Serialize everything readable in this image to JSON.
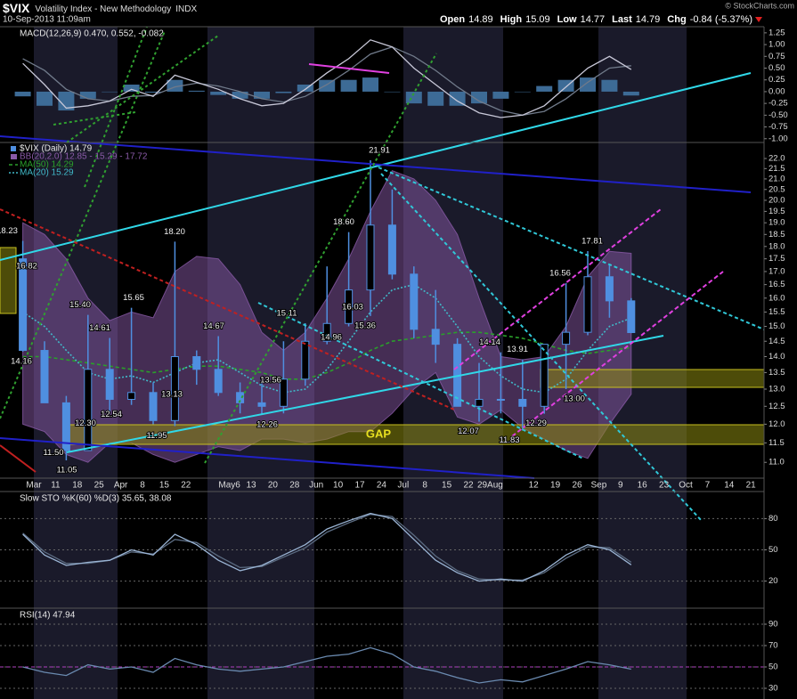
{
  "header": {
    "symbol": "$VIX",
    "name": "Volatility Index - New Methodology",
    "exchange": "INDX",
    "timestamp": "10-Sep-2013 11:09am",
    "credit": "© StockCharts.com",
    "quote": [
      {
        "label": "Open",
        "value": "14.89"
      },
      {
        "label": "High",
        "value": "15.09"
      },
      {
        "label": "Low",
        "value": "14.77"
      },
      {
        "label": "Last",
        "value": "14.79"
      },
      {
        "label": "Chg",
        "value": "-0.84 (-5.37%)"
      }
    ]
  },
  "chart_data": [
    {
      "type": "macd",
      "title": "MACD(12,26,9) 0.470, 0.552, -0.082",
      "ylim": [
        -1.08,
        1.38
      ],
      "yticks": [
        1.25,
        {
          "value": 1,
          "label": "1.00"
        },
        0.75,
        {
          "value": 0.5,
          "label": "0.50"
        },
        0.25,
        {
          "value": 0,
          "label": "0.00"
        },
        -0.25,
        {
          "value": -0.5,
          "label": "-0.50"
        },
        -0.75,
        {
          "value": -1,
          "label": "-1.00"
        }
      ],
      "grid": false,
      "series": [
        {
          "type": "bar",
          "color": "#3d6b96",
          "values": [
            -0.1,
            -0.3,
            -0.4,
            -0.15,
            0.0,
            0.15,
            -0.02,
            0.25,
            0.02,
            -0.07,
            -0.15,
            -0.15,
            -0.03,
            0.15,
            0.25,
            0.25,
            0.3,
            0.0,
            -0.25,
            -0.3,
            -0.3,
            -0.25,
            -0.15,
            0.0,
            0.12,
            0.25,
            0.3,
            0.25,
            -0.082,
            null,
            null,
            null,
            null,
            null,
            null
          ]
        },
        {
          "type": "line",
          "color": "#707a8a",
          "values": [
            0.7,
            0.45,
            0.05,
            -0.15,
            -0.2,
            -0.1,
            -0.08,
            0.1,
            0.18,
            0.12,
            0.0,
            -0.15,
            -0.22,
            -0.1,
            0.15,
            0.45,
            0.8,
            0.95,
            0.75,
            0.45,
            0.1,
            -0.2,
            -0.4,
            -0.5,
            -0.42,
            -0.15,
            0.2,
            0.5,
            0.552,
            null,
            null,
            null,
            null,
            null,
            null
          ]
        },
        {
          "type": "line",
          "color": "#c8c8d8",
          "values": [
            0.6,
            0.15,
            -0.35,
            -0.3,
            -0.2,
            0.05,
            -0.1,
            0.35,
            0.2,
            0.05,
            -0.15,
            -0.3,
            -0.25,
            0.05,
            0.4,
            0.7,
            1.1,
            0.95,
            0.5,
            0.15,
            -0.2,
            -0.45,
            -0.55,
            -0.5,
            -0.3,
            0.1,
            0.5,
            0.75,
            0.47,
            null,
            null,
            null,
            null,
            null,
            null
          ]
        }
      ]
    },
    {
      "type": "candlestick",
      "title": "$VIX (Daily) 14.79",
      "log_scale": true,
      "color": "#4f8fe0",
      "categories": [
        null,
        "Mar",
        "11",
        "18",
        "25",
        "Apr",
        "8",
        "15",
        "22",
        null,
        "May6",
        "13",
        "20",
        "28",
        "Jun",
        "10",
        "17",
        "24",
        "Jul",
        "8",
        "15",
        "22",
        "29Aug",
        null,
        "12",
        "19",
        "26",
        "Sep",
        "9",
        "16",
        "23",
        "Oct",
        "7",
        "14",
        "21"
      ],
      "open": [
        17.5,
        14.2,
        12.6,
        11.3,
        13.6,
        12.7,
        12.9,
        12.1,
        14.0,
        13.6,
        12.9,
        12.6,
        12.5,
        13.3,
        14.5,
        15.1,
        16.3,
        18.9,
        16.9,
        14.9,
        14.4,
        12.5,
        12.7,
        12.7,
        12.5,
        14.4,
        14.8,
        16.8,
        15.9,
        null,
        null,
        null,
        null,
        null,
        null
      ],
      "high": [
        18.23,
        14.5,
        12.8,
        15.4,
        14.61,
        15.65,
        13.2,
        18.2,
        14.2,
        14.67,
        13.2,
        13.2,
        14.5,
        15.11,
        17.2,
        18.6,
        21.91,
        20.5,
        17.2,
        16.3,
        14.6,
        13.8,
        14.14,
        13.91,
        14.4,
        16.56,
        17.81,
        17.3,
        16.0,
        null,
        null,
        null,
        null,
        null,
        null
      ],
      "low": [
        14.16,
        12.6,
        11.05,
        11.3,
        12.3,
        12.54,
        12.0,
        11.95,
        13.13,
        12.8,
        12.3,
        12.26,
        12.3,
        13.1,
        14.4,
        15.0,
        15.36,
        16.7,
        14.6,
        13.8,
        12.5,
        12.07,
        12.3,
        11.83,
        12.29,
        13.0,
        14.7,
        15.3,
        14.77,
        null,
        null,
        null,
        null,
        null,
        null
      ],
      "close": [
        14.2,
        12.6,
        11.3,
        13.6,
        12.7,
        12.9,
        12.1,
        14.0,
        13.6,
        12.9,
        12.6,
        12.5,
        13.3,
        14.5,
        15.1,
        16.3,
        18.9,
        16.9,
        14.9,
        14.4,
        12.5,
        12.7,
        12.7,
        12.5,
        14.4,
        14.8,
        16.8,
        15.9,
        14.79,
        null,
        null,
        null,
        null,
        null,
        null
      ],
      "ylim": [
        10.61,
        22.82
      ],
      "yticks": [
        {
          "value": 11,
          "label": "11.0"
        },
        11.5,
        {
          "value": 12,
          "label": "12.0"
        },
        12.5,
        {
          "value": 13,
          "label": "13.0"
        },
        13.5,
        {
          "value": 14,
          "label": "14.0"
        },
        14.5,
        {
          "value": 15,
          "label": "15.0"
        },
        15.5,
        {
          "value": 16,
          "label": "16.0"
        },
        16.5,
        {
          "value": 17,
          "label": "17.0"
        },
        17.5,
        {
          "value": 18,
          "label": "18.0"
        },
        18.5,
        {
          "value": 19,
          "label": "19.0"
        },
        19.5,
        {
          "value": 20,
          "label": "20.0"
        },
        20.5,
        {
          "value": 21,
          "label": "21.0"
        },
        21.5,
        {
          "value": 22,
          "label": "22.0"
        }
      ],
      "grid": false,
      "series": [
        {
          "type": "band",
          "name": "BB(20,2.0) 12.85 - 15.29 - 17.72",
          "color": "#8a5aa8",
          "upper": [
            19.0,
            18.5,
            17.5,
            16.0,
            15.2,
            15.5,
            15.3,
            17.0,
            17.6,
            17.5,
            16.5,
            14.8,
            14.2,
            14.8,
            16.0,
            17.5,
            19.5,
            21.4,
            21.0,
            20.0,
            18.5,
            16.0,
            14.0,
            13.9,
            14.0,
            15.0,
            16.8,
            17.8,
            17.72,
            null,
            null,
            null,
            null,
            null,
            null
          ],
          "lower": [
            12.0,
            11.8,
            11.2,
            11.0,
            11.5,
            11.5,
            11.2,
            11.0,
            11.2,
            11.4,
            11.3,
            11.6,
            11.6,
            11.5,
            11.6,
            11.8,
            11.8,
            12.3,
            13.0,
            13.5,
            12.2,
            12.0,
            12.4,
            11.9,
            11.6,
            11.3,
            11.1,
            12.0,
            12.85,
            null,
            null,
            null,
            null,
            null,
            null
          ]
        },
        {
          "type": "line",
          "name": "MA(50) 14.29",
          "color": "#2aa02a",
          "line_style": "dashed",
          "values": [
            14.0,
            14.0,
            13.9,
            13.8,
            13.7,
            13.6,
            13.5,
            13.6,
            13.7,
            13.7,
            13.6,
            13.5,
            13.3,
            13.3,
            13.5,
            13.8,
            14.2,
            14.5,
            14.6,
            14.7,
            14.8,
            14.8,
            14.7,
            14.6,
            14.4,
            14.2,
            14.1,
            14.2,
            14.29,
            null,
            null,
            null,
            null,
            null,
            null
          ]
        },
        {
          "type": "line",
          "name": "MA(20) 15.29",
          "color": "#40b8c8",
          "line_style": "dotted",
          "values": [
            15.5,
            15.0,
            14.2,
            13.5,
            13.3,
            13.4,
            13.2,
            13.5,
            13.8,
            13.9,
            13.5,
            13.1,
            12.9,
            13.0,
            13.6,
            14.5,
            15.5,
            16.3,
            16.5,
            16.0,
            15.0,
            14.0,
            13.4,
            13.0,
            12.9,
            13.3,
            14.2,
            15.0,
            15.29,
            null,
            null,
            null,
            null,
            null,
            null
          ]
        }
      ],
      "annotations": [
        {
          "value": 18.23,
          "label": "18.23"
        },
        {
          "value": 16.82,
          "label": "16.82"
        },
        {
          "value": 14.16,
          "label": "14.16"
        },
        {
          "value": 11.5,
          "label": "11.50"
        },
        {
          "value": 11.05,
          "label": "11.05"
        },
        {
          "value": 15.4,
          "label": "15.40"
        },
        {
          "value": 14.61,
          "label": "14.61"
        },
        {
          "value": 12.3,
          "label": "12.30"
        },
        {
          "value": 12.54,
          "label": "12.54"
        },
        {
          "value": 15.65,
          "label": "15.65"
        },
        {
          "value": 18.2,
          "label": "18.20"
        },
        {
          "value": 13.13,
          "label": "13.13"
        },
        {
          "value": 14.67,
          "label": "14.67"
        },
        {
          "value": 11.95,
          "label": "11.95"
        },
        {
          "value": 12.26,
          "label": "12.26"
        },
        {
          "value": 13.56,
          "label": "13.56"
        },
        {
          "value": 15.11,
          "label": "15.11"
        },
        {
          "value": 14.96,
          "label": "14.96"
        },
        {
          "value": 18.6,
          "label": "18.60"
        },
        {
          "value": 16.03,
          "label": "16.03"
        },
        {
          "value": 15.36,
          "label": "15.36"
        },
        {
          "value": 21.91,
          "label": "21.91"
        },
        {
          "value": 12.07,
          "label": "12.07"
        },
        {
          "value": 14.14,
          "label": "14.14"
        },
        {
          "value": 13.91,
          "label": "13.91"
        },
        {
          "value": 11.83,
          "label": "11.83"
        },
        {
          "value": 12.29,
          "label": "12.29"
        },
        {
          "value": 16.56,
          "label": "16.56"
        },
        {
          "value": 17.81,
          "label": "17.81"
        },
        {
          "value": 13.0,
          "label": "13.00"
        }
      ],
      "gap_label": "GAP"
    },
    {
      "type": "line",
      "title": "Slow STO %K(60) %D(3) 35.65, 38.08",
      "ylim": [
        -6,
        106
      ],
      "yticks": [
        20,
        50,
        80
      ],
      "grid": true,
      "series": [
        {
          "color": "#5a6a80",
          "values": [
            66,
            48,
            37,
            37,
            40,
            48,
            46,
            60,
            57,
            44,
            33,
            34,
            43,
            52,
            67,
            76,
            84,
            82,
            64,
            44,
            30,
            22,
            21,
            21,
            28,
            42,
            53,
            52,
            38.08,
            null,
            null,
            null,
            null,
            null,
            null
          ]
        },
        {
          "color": "#9ab4d4",
          "values": [
            65,
            45,
            35,
            38,
            40,
            50,
            45,
            65,
            55,
            40,
            30,
            35,
            45,
            55,
            70,
            78,
            85,
            80,
            60,
            40,
            28,
            20,
            22,
            20,
            30,
            45,
            55,
            50,
            35.65,
            null,
            null,
            null,
            null,
            null,
            null
          ]
        }
      ]
    },
    {
      "type": "line",
      "title": "RSI(14) 47.94",
      "ylim": [
        20,
        105
      ],
      "yticks": [
        30,
        50,
        70,
        90
      ],
      "grid": true,
      "reference_line": {
        "value": 50,
        "color": "#b040c0"
      },
      "series": [
        {
          "color": "#6a8ab0",
          "values": [
            50,
            45,
            42,
            52,
            48,
            50,
            45,
            58,
            52,
            48,
            46,
            48,
            50,
            55,
            60,
            62,
            68,
            62,
            50,
            46,
            40,
            35,
            38,
            36,
            42,
            48,
            55,
            52,
            47.94,
            null,
            null,
            null,
            null,
            null,
            null
          ]
        }
      ]
    }
  ]
}
